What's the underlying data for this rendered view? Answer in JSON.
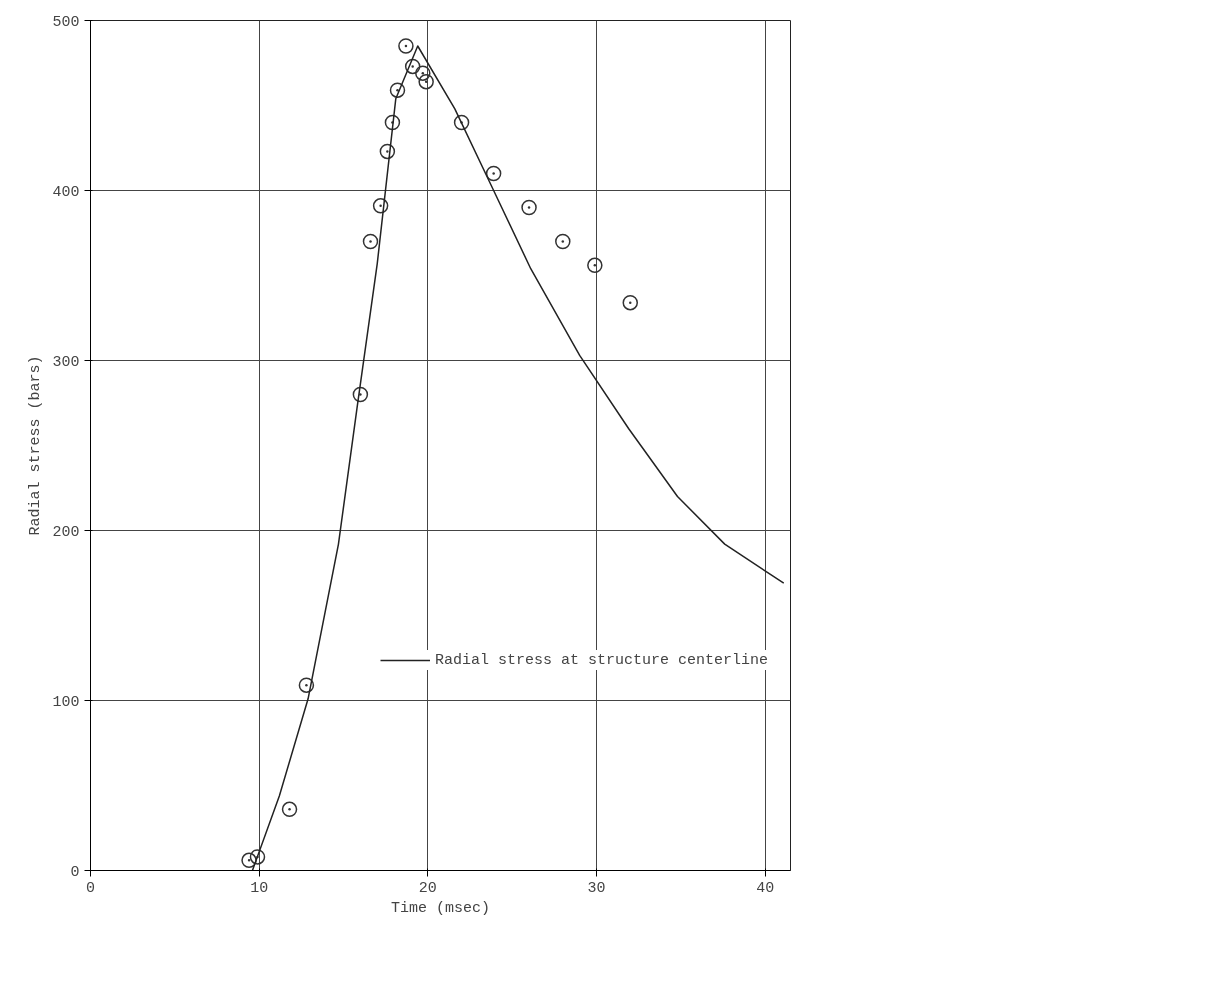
{
  "chart_data": {
    "type": "scatter",
    "xlabel": "Time (msec)",
    "ylabel": "Radial stress (bars)",
    "xlim": [
      0,
      41.5
    ],
    "ylim": [
      0,
      500
    ],
    "xticks": [
      0,
      10,
      20,
      30,
      40
    ],
    "yticks": [
      0,
      100,
      200,
      300,
      400,
      500
    ],
    "grid": true,
    "legend": "right",
    "marker": "circle",
    "series": [
      {
        "color": "#333333",
        "x": [
          9.4,
          9.9,
          11.8,
          12.8,
          16.0,
          16.6,
          17.2,
          17.6,
          17.9,
          18.2,
          18.7,
          19.1,
          19.7,
          19.9,
          22.0,
          23.9,
          26.0,
          28.0,
          29.9,
          32.0
        ],
        "values": [
          6,
          8,
          36,
          109,
          280,
          370,
          391,
          423,
          440,
          459,
          485,
          473,
          469,
          464,
          440,
          410,
          390,
          370,
          356,
          334
        ]
      },
      {
        "type": "line",
        "name": "Radial stress at structure centerline",
        "color": "#222222",
        "line_style": "solid",
        "marker": "none",
        "x": [
          9.6,
          11.2,
          12.9,
          14.7,
          15.8,
          17.0,
          18.1,
          19.4,
          21.6,
          23.9,
          26.1,
          29.0,
          31.9,
          34.8,
          37.6,
          41.1
        ],
        "values": [
          0,
          44,
          101,
          192,
          272,
          357,
          454,
          485,
          448,
          400,
          354,
          303,
          260,
          220,
          192,
          169
        ]
      }
    ]
  }
}
